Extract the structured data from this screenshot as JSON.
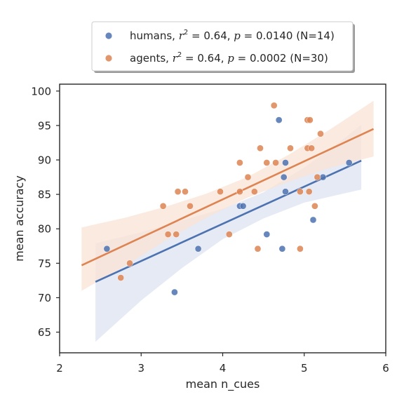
{
  "chart_data": {
    "type": "scatter",
    "xlabel": "mean n_cues",
    "ylabel": "mean accuracy",
    "xlim": [
      2,
      6
    ],
    "ylim": [
      62,
      101
    ],
    "xticks": [
      2,
      3,
      4,
      5,
      6
    ],
    "yticks": [
      65,
      70,
      75,
      80,
      85,
      90,
      95,
      100
    ],
    "grid": false,
    "legend_position": "top-center",
    "series": [
      {
        "name": "humans",
        "r2": "0.64",
        "p": "0.0140",
        "n": "N=14",
        "color": "#4c72b0",
        "band_color": "#dde3f0",
        "points": [
          [
            2.58,
            77.1
          ],
          [
            3.41,
            70.8
          ],
          [
            3.7,
            77.1
          ],
          [
            4.21,
            83.3
          ],
          [
            4.25,
            83.3
          ],
          [
            4.54,
            79.2
          ],
          [
            4.69,
            95.8
          ],
          [
            4.73,
            77.1
          ],
          [
            4.75,
            87.5
          ],
          [
            4.77,
            89.6
          ],
          [
            4.77,
            85.4
          ],
          [
            5.11,
            81.3
          ],
          [
            5.23,
            87.5
          ],
          [
            5.55,
            89.6
          ]
        ],
        "fit": {
          "x": [
            2.44,
            5.7
          ],
          "y": [
            72.3,
            89.9
          ]
        },
        "ci_upper": [
          [
            2.44,
            77.9
          ],
          [
            3.0,
            79.5
          ],
          [
            3.5,
            81.2
          ],
          [
            4.0,
            82.9
          ],
          [
            4.5,
            85.3
          ],
          [
            5.0,
            88.9
          ],
          [
            5.4,
            92.3
          ],
          [
            5.7,
            95.1
          ]
        ],
        "ci_lower": [
          [
            2.44,
            63.6
          ],
          [
            3.0,
            69.6
          ],
          [
            3.5,
            74.3
          ],
          [
            4.0,
            78.5
          ],
          [
            4.5,
            81.5
          ],
          [
            5.0,
            83.8
          ],
          [
            5.4,
            84.9
          ],
          [
            5.7,
            85.7
          ]
        ]
      },
      {
        "name": "agents",
        "r2": "0.64",
        "p": "0.0002",
        "n": "N=30",
        "color": "#dd8452",
        "band_color": "#f9e3d6",
        "points": [
          [
            2.75,
            72.9
          ],
          [
            2.86,
            75.0
          ],
          [
            3.27,
            83.3
          ],
          [
            3.33,
            79.2
          ],
          [
            3.43,
            79.2
          ],
          [
            3.45,
            85.4
          ],
          [
            3.54,
            85.4
          ],
          [
            3.6,
            83.3
          ],
          [
            3.97,
            85.4
          ],
          [
            4.08,
            79.2
          ],
          [
            4.21,
            89.6
          ],
          [
            4.21,
            85.4
          ],
          [
            4.31,
            87.5
          ],
          [
            4.39,
            85.4
          ],
          [
            4.43,
            77.1
          ],
          [
            4.46,
            91.7
          ],
          [
            4.54,
            89.6
          ],
          [
            4.63,
            97.9
          ],
          [
            4.65,
            89.6
          ],
          [
            4.83,
            91.7
          ],
          [
            4.95,
            85.4
          ],
          [
            4.95,
            77.1
          ],
          [
            5.04,
            95.8
          ],
          [
            5.07,
            95.8
          ],
          [
            5.04,
            91.7
          ],
          [
            5.09,
            91.7
          ],
          [
            5.06,
            85.4
          ],
          [
            5.13,
            83.3
          ],
          [
            5.16,
            87.5
          ],
          [
            5.2,
            93.8
          ]
        ],
        "fit": {
          "x": [
            2.27,
            5.85
          ],
          "y": [
            74.7,
            94.5
          ]
        },
        "ci_upper": [
          [
            2.27,
            80.2
          ],
          [
            2.8,
            81.6
          ],
          [
            3.3,
            83.2
          ],
          [
            3.8,
            85.1
          ],
          [
            4.3,
            87.5
          ],
          [
            4.8,
            90.7
          ],
          [
            5.3,
            94.3
          ],
          [
            5.85,
            98.6
          ]
        ],
        "ci_lower": [
          [
            2.27,
            71.0
          ],
          [
            2.8,
            74.6
          ],
          [
            3.3,
            78.3
          ],
          [
            3.8,
            81.6
          ],
          [
            4.3,
            84.5
          ],
          [
            4.8,
            86.8
          ],
          [
            5.3,
            88.8
          ],
          [
            5.85,
            90.5
          ]
        ]
      }
    ]
  }
}
